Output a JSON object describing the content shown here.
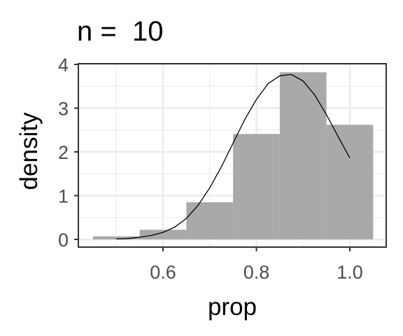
{
  "chart_data": {
    "type": "bar",
    "title": "n =  10",
    "xlabel": "prop",
    "ylabel": "density",
    "xlim": [
      0.45,
      1.05
    ],
    "ylim": [
      0,
      4
    ],
    "x_ticks": [
      0.6,
      0.8,
      1.0
    ],
    "x_tick_labels": [
      "0.6",
      "0.8",
      "1.0"
    ],
    "y_ticks": [
      0,
      1,
      2,
      3,
      4
    ],
    "y_tick_labels": [
      "0",
      "1",
      "2",
      "3",
      "4"
    ],
    "grid": true,
    "histogram": {
      "bins": [
        {
          "x0": 0.45,
          "x1": 0.55,
          "density": 0.07
        },
        {
          "x0": 0.55,
          "x1": 0.65,
          "density": 0.22
        },
        {
          "x0": 0.65,
          "x1": 0.75,
          "density": 0.85
        },
        {
          "x0": 0.75,
          "x1": 0.85,
          "density": 2.41
        },
        {
          "x0": 0.85,
          "x1": 0.95,
          "density": 3.82
        },
        {
          "x0": 0.95,
          "x1": 1.05,
          "density": 2.62
        }
      ],
      "fill": "#a9a9a9"
    },
    "density_curve": {
      "x": [
        0.5,
        0.525,
        0.55,
        0.575,
        0.6,
        0.625,
        0.65,
        0.675,
        0.7,
        0.725,
        0.75,
        0.775,
        0.8,
        0.825,
        0.85,
        0.875,
        0.9,
        0.925,
        0.95,
        0.975,
        1.0
      ],
      "y": [
        0.01,
        0.02,
        0.05,
        0.09,
        0.16,
        0.28,
        0.48,
        0.78,
        1.18,
        1.66,
        2.2,
        2.74,
        3.2,
        3.56,
        3.74,
        3.77,
        3.62,
        3.3,
        2.85,
        2.35,
        1.86
      ],
      "color": "#000000"
    },
    "panel_border_color": "#333333",
    "grid_color": "#ebebeb"
  }
}
